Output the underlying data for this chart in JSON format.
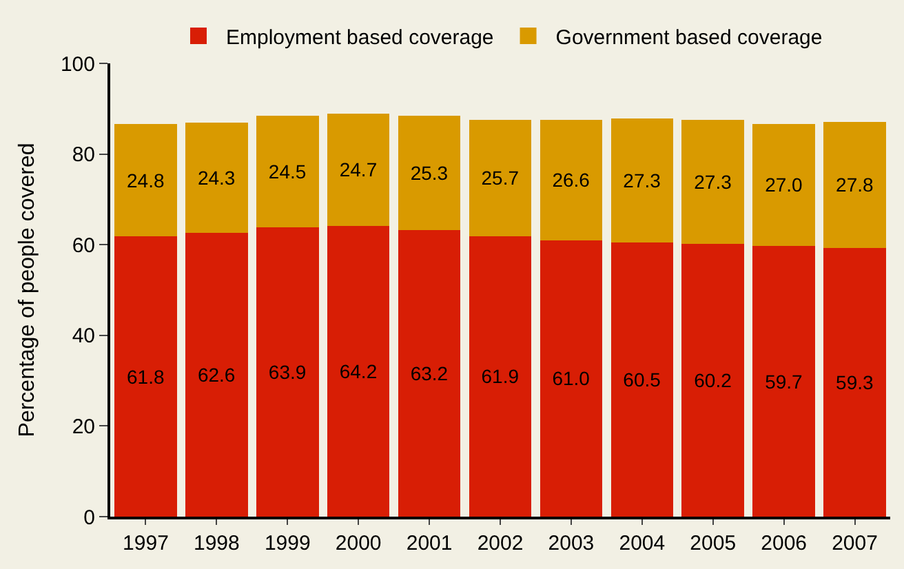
{
  "chart_data": {
    "type": "bar",
    "stacked": true,
    "ylabel": "Percentage of people covered",
    "categories": [
      "1997",
      "1998",
      "1999",
      "2000",
      "2001",
      "2002",
      "2003",
      "2004",
      "2005",
      "2006",
      "2007"
    ],
    "series": [
      {
        "name": "Employment based coverage",
        "color": "#d81e05",
        "values": [
          61.8,
          62.6,
          63.9,
          64.2,
          63.2,
          61.9,
          61.0,
          60.5,
          60.2,
          59.7,
          59.3
        ],
        "value_labels": [
          "61.8",
          "62.6",
          "63.9",
          "64.2",
          "63.2",
          "61.9",
          "61.0",
          "60.5",
          "60.2",
          "59.7",
          "59.3"
        ]
      },
      {
        "name": "Government based coverage",
        "color": "#d99a00",
        "values": [
          24.8,
          24.3,
          24.5,
          24.7,
          25.3,
          25.7,
          26.6,
          27.3,
          27.3,
          27.0,
          27.8
        ],
        "value_labels": [
          "24.8",
          "24.3",
          "24.5",
          "24.7",
          "25.3",
          "25.7",
          "26.6",
          "27.3",
          "27.3",
          "27.0",
          "27.8"
        ]
      }
    ],
    "ylim": [
      0,
      100
    ],
    "yticks": [
      0,
      20,
      40,
      60,
      80,
      100
    ],
    "grid": false,
    "legend": "top"
  }
}
